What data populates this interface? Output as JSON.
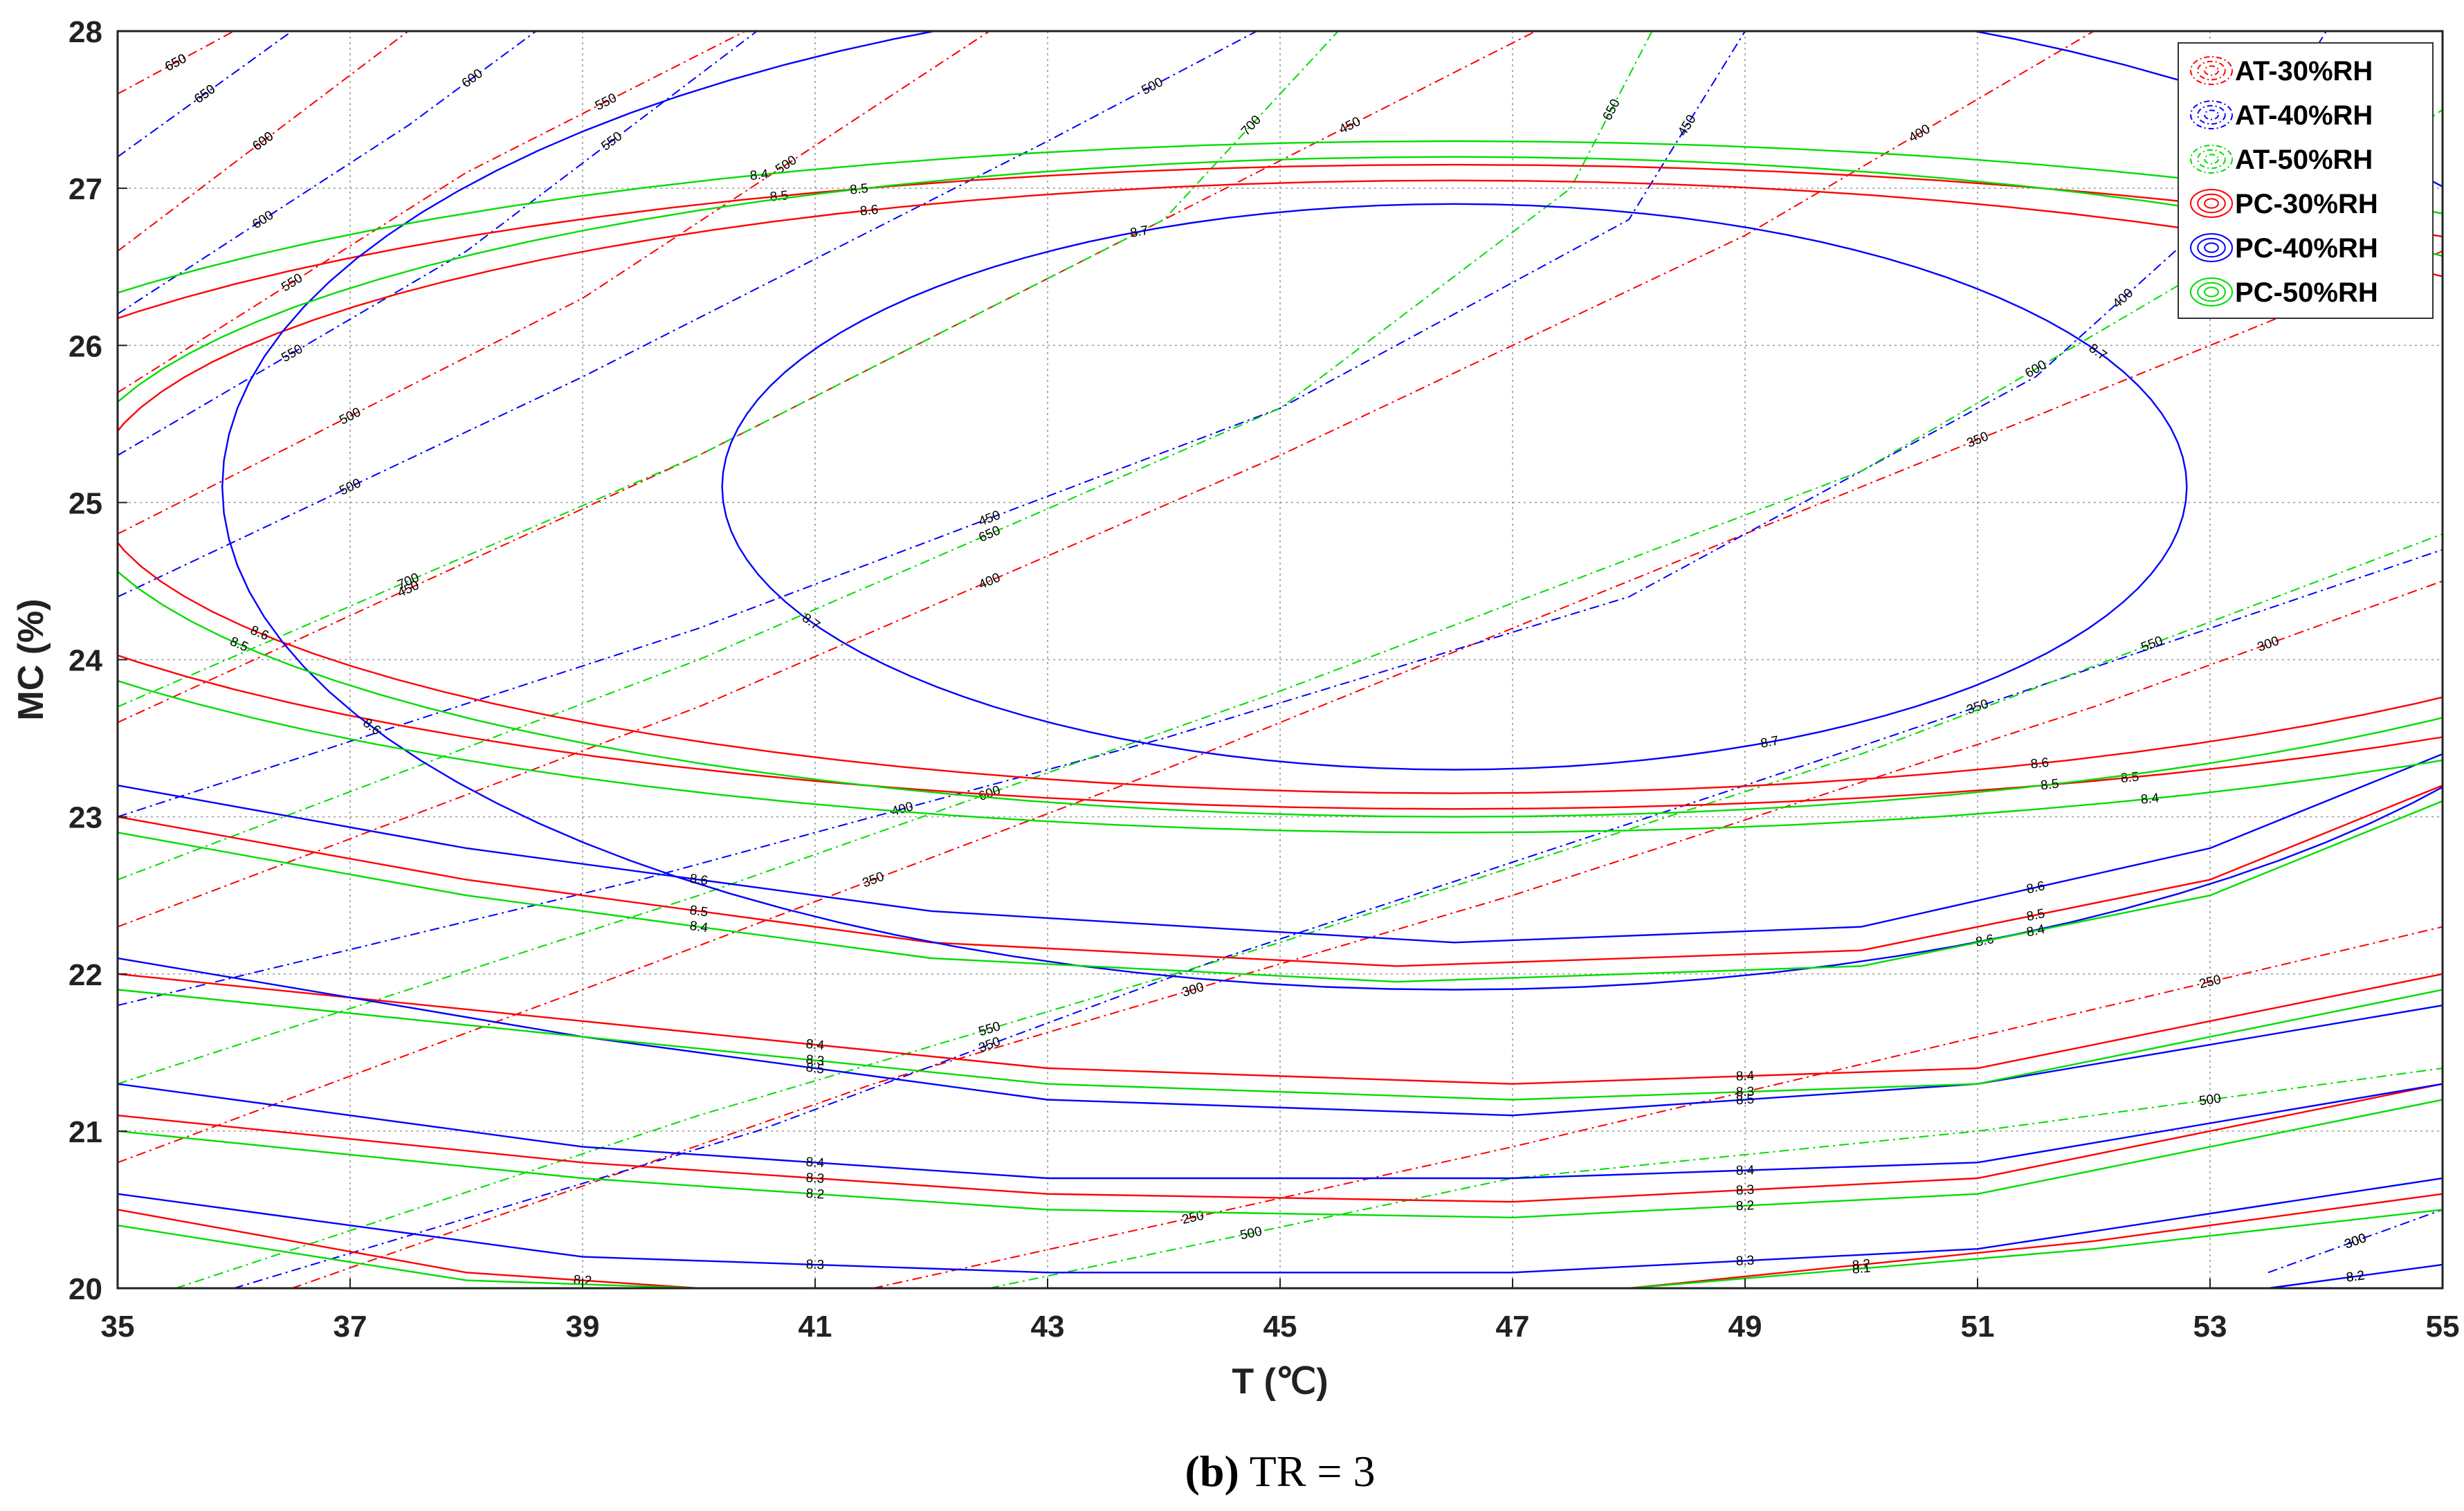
{
  "chart_data": {
    "type": "contour",
    "xlabel": "T (℃)",
    "ylabel": "MC (%)",
    "xlim": [
      35,
      55
    ],
    "ylim": [
      20,
      28
    ],
    "xticks": [
      "35",
      "37",
      "39",
      "41",
      "43",
      "45",
      "47",
      "49",
      "51",
      "53",
      "55"
    ],
    "yticks": [
      "20",
      "21",
      "22",
      "23",
      "24",
      "25",
      "26",
      "27",
      "28"
    ],
    "grid": true,
    "legend_position": "top-right",
    "caption": {
      "bold": "(b)",
      "rest": " TR = 3"
    },
    "series": [
      {
        "name": "AT-30%RH",
        "color": "#ff0000",
        "style": "dashdot",
        "kind": "AT",
        "levels": [
          250,
          300,
          350,
          400,
          450,
          500,
          550,
          600,
          650,
          700
        ],
        "lines": [
          {
            "level": 250,
            "points": [
              [
                41.5,
                20
              ],
              [
                47,
                20.9
              ],
              [
                51,
                21.6
              ],
              [
                55,
                22.3
              ]
            ]
          },
          {
            "level": 300,
            "points": [
              [
                36.5,
                20
              ],
              [
                41.5,
                21.3
              ],
              [
                47,
                22.5
              ],
              [
                52,
                23.7
              ],
              [
                55,
                24.5
              ]
            ]
          },
          {
            "level": 350,
            "points": [
              [
                35,
                20.8
              ],
              [
                39,
                21.9
              ],
              [
                44,
                23.3
              ],
              [
                49,
                24.8
              ],
              [
                53,
                26
              ],
              [
                55,
                26.6
              ]
            ]
          },
          {
            "level": 400,
            "points": [
              [
                35,
                22.3
              ],
              [
                40,
                23.7
              ],
              [
                45,
                25.3
              ],
              [
                49,
                26.7
              ],
              [
                52,
                28
              ]
            ]
          },
          {
            "level": 450,
            "points": [
              [
                35,
                23.6
              ],
              [
                40,
                25.3
              ],
              [
                44,
                26.8
              ],
              [
                47.2,
                28
              ]
            ]
          },
          {
            "level": 500,
            "points": [
              [
                35,
                24.8
              ],
              [
                39,
                26.3
              ],
              [
                42.5,
                28
              ]
            ]
          },
          {
            "level": 550,
            "points": [
              [
                35,
                25.7
              ],
              [
                38,
                27.1
              ],
              [
                40.4,
                28
              ]
            ]
          },
          {
            "level": 600,
            "points": [
              [
                35,
                26.6
              ],
              [
                37.5,
                28
              ]
            ]
          },
          {
            "level": 650,
            "points": [
              [
                35,
                27.6
              ],
              [
                36,
                28
              ]
            ]
          }
        ]
      },
      {
        "name": "AT-40%RH",
        "color": "#0000ff",
        "style": "dashdot",
        "kind": "AT",
        "levels": [
          300,
          350,
          400,
          450,
          500,
          550,
          600,
          650,
          700
        ],
        "lines": [
          {
            "level": 300,
            "points": [
              [
                53.5,
                20.1
              ],
              [
                55,
                20.5
              ]
            ]
          },
          {
            "level": 350,
            "points": [
              [
                36,
                20
              ],
              [
                40.5,
                21
              ],
              [
                44.5,
                22.1
              ],
              [
                49,
                23.2
              ],
              [
                53,
                24.2
              ],
              [
                55,
                24.7
              ]
            ]
          },
          {
            "level": 400,
            "points": [
              [
                35,
                21.8
              ],
              [
                39.5,
                22.6
              ],
              [
                44,
                23.5
              ],
              [
                48,
                24.4
              ],
              [
                51.5,
                25.8
              ],
              [
                53,
                26.8
              ],
              [
                54,
                28
              ]
            ]
          },
          {
            "level": 450,
            "points": [
              [
                35,
                23
              ],
              [
                40,
                24.2
              ],
              [
                45,
                25.6
              ],
              [
                48,
                26.8
              ],
              [
                49,
                28
              ]
            ]
          },
          {
            "level": 500,
            "points": [
              [
                35,
                24.4
              ],
              [
                39,
                25.8
              ],
              [
                43,
                27.3
              ],
              [
                44.8,
                28
              ]
            ]
          },
          {
            "level": 550,
            "points": [
              [
                35,
                25.3
              ],
              [
                38,
                26.6
              ],
              [
                40.5,
                28
              ]
            ]
          },
          {
            "level": 600,
            "points": [
              [
                35,
                26.2
              ],
              [
                37.5,
                27.4
              ],
              [
                38.6,
                28
              ]
            ]
          },
          {
            "level": 650,
            "points": [
              [
                35,
                27.2
              ],
              [
                36.5,
                28
              ]
            ]
          }
        ]
      },
      {
        "name": "AT-50%RH",
        "color": "#00dd00",
        "style": "dashdot",
        "kind": "AT",
        "levels": [
          500,
          550,
          600,
          650,
          700
        ],
        "lines": [
          {
            "level": 500,
            "points": [
              [
                42.5,
                20
              ],
              [
                47,
                20.7
              ],
              [
                51,
                21
              ],
              [
                55,
                21.4
              ]
            ]
          },
          {
            "level": 550,
            "points": [
              [
                35.5,
                20
              ],
              [
                40,
                21.1
              ],
              [
                45,
                22.2
              ],
              [
                50,
                23.4
              ],
              [
                55,
                24.8
              ]
            ]
          },
          {
            "level": 600,
            "points": [
              [
                35,
                21.3
              ],
              [
                40,
                22.5
              ],
              [
                45,
                23.8
              ],
              [
                50,
                25.2
              ],
              [
                53,
                26.5
              ],
              [
                55,
                27.5
              ]
            ]
          },
          {
            "level": 650,
            "points": [
              [
                35,
                22.6
              ],
              [
                40,
                24
              ],
              [
                45,
                25.6
              ],
              [
                47.5,
                27
              ],
              [
                48.2,
                28
              ]
            ]
          },
          {
            "level": 700,
            "points": [
              [
                35,
                23.7
              ],
              [
                40,
                25.3
              ],
              [
                44,
                26.8
              ],
              [
                45.5,
                28
              ]
            ]
          }
        ]
      },
      {
        "name": "PC-30%RH",
        "color": "#ff0000",
        "style": "solid",
        "kind": "PC",
        "levels": [
          8.1,
          8.2,
          8.3,
          8.4,
          8.5,
          8.6
        ],
        "lines": [
          {
            "level": 8.6,
            "points": "ellipse:46.5,25.1,11.7,1.95"
          },
          {
            "level": 8.5,
            "points": "ellipse:46.5,25.1,13.5,2.05"
          },
          {
            "level": 8.5,
            "points": [
              [
                35,
                23
              ],
              [
                38,
                22.6
              ],
              [
                42,
                22.2
              ],
              [
                46,
                22.05
              ],
              [
                50,
                22.15
              ],
              [
                53,
                22.6
              ],
              [
                55,
                23.2
              ]
            ]
          },
          {
            "level": 8.4,
            "points": [
              [
                35,
                22
              ],
              [
                39,
                21.7
              ],
              [
                43,
                21.4
              ],
              [
                47,
                21.3
              ],
              [
                51,
                21.4
              ],
              [
                55,
                22
              ]
            ]
          },
          {
            "level": 8.3,
            "points": [
              [
                35,
                21.1
              ],
              [
                39,
                20.8
              ],
              [
                43,
                20.6
              ],
              [
                47,
                20.55
              ],
              [
                51,
                20.7
              ],
              [
                55,
                21.3
              ]
            ]
          },
          {
            "level": 8.2,
            "points": [
              [
                35,
                20.5
              ],
              [
                38,
                20.1
              ],
              [
                40,
                20
              ],
              [
                44,
                20
              ],
              [
                48,
                20
              ],
              [
                52,
                20.3
              ],
              [
                55,
                20.6
              ]
            ]
          }
        ]
      },
      {
        "name": "PC-40%RH",
        "color": "#0000ff",
        "style": "solid",
        "kind": "PC",
        "levels": [
          8.2,
          8.3,
          8.4,
          8.5,
          8.6,
          8.7
        ],
        "lines": [
          {
            "level": 8.7,
            "points": "ellipse:46.5,25.1,6.3,1.8"
          },
          {
            "level": 8.6,
            "points": "ellipse:46.5,25.1,10.6,3.2"
          },
          {
            "level": 8.6,
            "points": [
              [
                35,
                23.2
              ],
              [
                38,
                22.8
              ],
              [
                42,
                22.4
              ],
              [
                46.5,
                22.2
              ],
              [
                50,
                22.3
              ],
              [
                53,
                22.8
              ],
              [
                55,
                23.4
              ]
            ]
          },
          {
            "level": 8.5,
            "points": [
              [
                35,
                22.1
              ],
              [
                39,
                21.6
              ],
              [
                43,
                21.2
              ],
              [
                47,
                21.1
              ],
              [
                51,
                21.3
              ],
              [
                55,
                21.8
              ]
            ]
          },
          {
            "level": 8.4,
            "points": [
              [
                35,
                21.3
              ],
              [
                39,
                20.9
              ],
              [
                43,
                20.7
              ],
              [
                47,
                20.7
              ],
              [
                51,
                20.8
              ],
              [
                55,
                21.3
              ]
            ]
          },
          {
            "level": 8.3,
            "points": [
              [
                35,
                20.6
              ],
              [
                39,
                20.2
              ],
              [
                43,
                20.1
              ],
              [
                47,
                20.1
              ],
              [
                51,
                20.25
              ],
              [
                55,
                20.7
              ]
            ]
          },
          {
            "level": 8.2,
            "points": [
              [
                53.5,
                20
              ],
              [
                55,
                20.15
              ]
            ]
          }
        ]
      },
      {
        "name": "PC-50%RH",
        "color": "#00dd00",
        "style": "solid",
        "kind": "PC",
        "levels": [
          8.1,
          8.2,
          8.3,
          8.4,
          8.5
        ],
        "lines": [
          {
            "level": 8.5,
            "points": "ellipse:46.5,25.1,11.9,2.1"
          },
          {
            "level": 8.4,
            "points": "ellipse:46.5,25.1,13.9,2.2"
          },
          {
            "level": 8.4,
            "points": [
              [
                35,
                22.9
              ],
              [
                38,
                22.5
              ],
              [
                42,
                22.1
              ],
              [
                46,
                21.95
              ],
              [
                50,
                22.05
              ],
              [
                53,
                22.5
              ],
              [
                55,
                23.1
              ]
            ]
          },
          {
            "level": 8.3,
            "points": [
              [
                35,
                21.9
              ],
              [
                39,
                21.6
              ],
              [
                43,
                21.3
              ],
              [
                47,
                21.2
              ],
              [
                51,
                21.3
              ],
              [
                55,
                21.9
              ]
            ]
          },
          {
            "level": 8.2,
            "points": [
              [
                35,
                21.0
              ],
              [
                39,
                20.7
              ],
              [
                43,
                20.5
              ],
              [
                47,
                20.45
              ],
              [
                51,
                20.6
              ],
              [
                55,
                21.2
              ]
            ]
          },
          {
            "level": 8.1,
            "points": [
              [
                35,
                20.4
              ],
              [
                38,
                20.05
              ],
              [
                40,
                20
              ],
              [
                44,
                20
              ],
              [
                48,
                20
              ],
              [
                52,
                20.25
              ],
              [
                55,
                20.5
              ]
            ]
          }
        ]
      }
    ]
  }
}
